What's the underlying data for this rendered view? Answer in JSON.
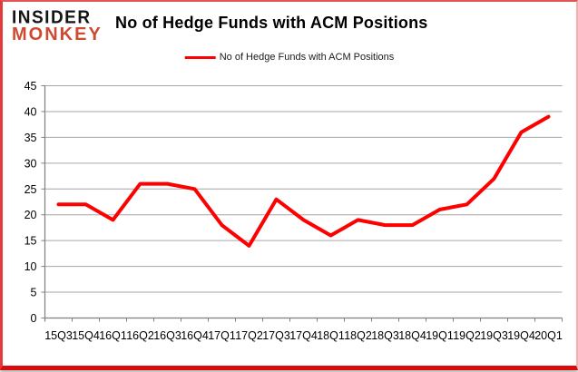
{
  "logo": {
    "line1": "INSIDER",
    "line2": "MONKEY"
  },
  "header": {
    "title": "No of Hedge Funds with ACM Positions"
  },
  "legend": {
    "label": "No of Hedge Funds with ACM Positions",
    "line_color": "#fe0000"
  },
  "colors": {
    "grid": "#a6a6a6",
    "axis": "#808080",
    "series_red": "#fe0000",
    "logo_red": "#cd4a33",
    "border_red": "#da0b0b",
    "text": "#000000"
  },
  "chart_data": {
    "type": "line",
    "title": "No of Hedge Funds with ACM Positions",
    "xlabel": "",
    "ylabel": "",
    "categories": [
      "15Q3",
      "15Q4",
      "16Q1",
      "16Q2",
      "16Q3",
      "16Q4",
      "17Q1",
      "17Q2",
      "17Q3",
      "17Q4",
      "18Q1",
      "18Q2",
      "18Q3",
      "18Q4",
      "19Q1",
      "19Q2",
      "19Q3",
      "19Q4",
      "20Q1"
    ],
    "series": [
      {
        "name": "No of Hedge Funds with ACM Positions",
        "color": "#fe0000",
        "values": [
          22,
          22,
          19,
          26,
          26,
          25,
          18,
          14,
          23,
          19,
          16,
          19,
          18,
          18,
          21,
          22,
          27,
          36,
          39
        ]
      }
    ],
    "ylim": [
      0,
      45
    ],
    "yticks": [
      0,
      5,
      10,
      15,
      20,
      25,
      30,
      35,
      40,
      45
    ],
    "grid": true,
    "legend_position": "top-center"
  }
}
